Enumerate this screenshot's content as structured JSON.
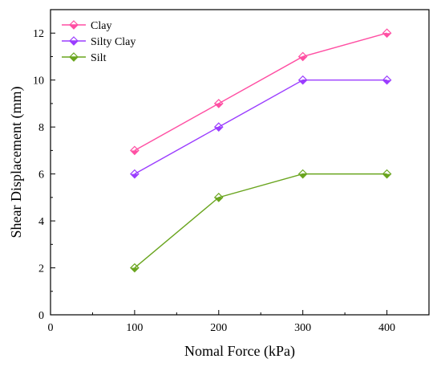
{
  "chart_data": {
    "type": "line",
    "title": "",
    "xlabel": "Nomal Force (kPa)",
    "ylabel": "Shear Displacement (mm)",
    "xlim": [
      0,
      450
    ],
    "ylim": [
      0,
      13
    ],
    "x_ticks": [
      0,
      100,
      200,
      300,
      400
    ],
    "y_ticks": [
      0,
      2,
      4,
      6,
      8,
      10,
      12
    ],
    "grid": false,
    "legend": "top-left",
    "x": [
      100,
      200,
      300,
      400
    ],
    "series": [
      {
        "name": "Clay",
        "color": "#ff4fa3",
        "marker": "diamond-half",
        "values": [
          7,
          9,
          11,
          12
        ]
      },
      {
        "name": "Silty Clay",
        "color": "#9b3dff",
        "marker": "diamond-half",
        "values": [
          6,
          8,
          10,
          10
        ]
      },
      {
        "name": "Silt",
        "color": "#6aa51f",
        "marker": "diamond-half",
        "values": [
          2,
          5,
          6,
          6
        ]
      }
    ]
  }
}
